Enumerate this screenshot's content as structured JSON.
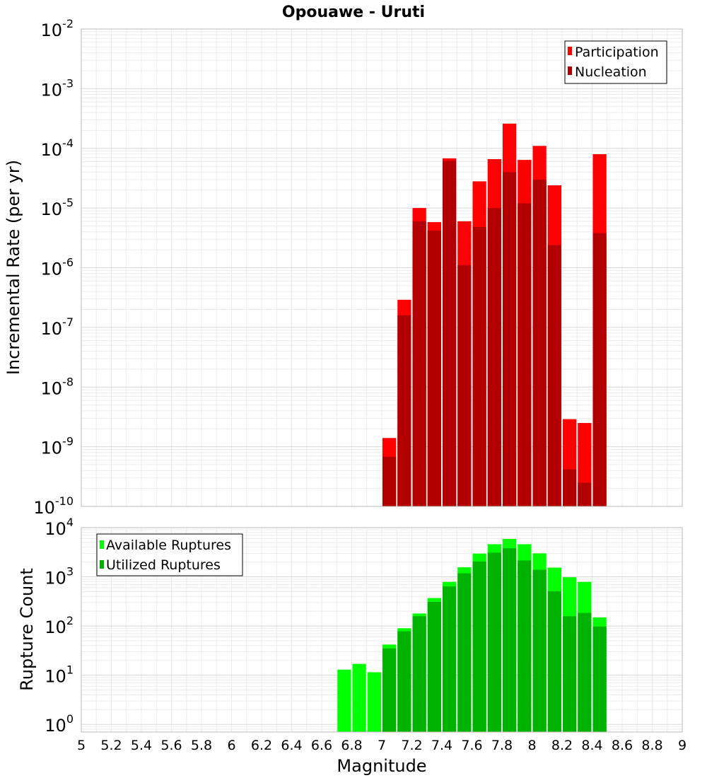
{
  "chart_data": [
    {
      "type": "bar",
      "title": "Opouawe - Uruti",
      "ylabel": "Incremental Rate (per yr)",
      "xlabel": "",
      "y_scale": "log",
      "ylim": [
        1e-10,
        0.01
      ],
      "xlim": [
        5,
        9
      ],
      "grid": true,
      "legend_position": "top-right",
      "bin_width": 0.1,
      "x": [
        7.05,
        7.15,
        7.25,
        7.35,
        7.45,
        7.55,
        7.65,
        7.75,
        7.85,
        7.95,
        8.05,
        8.15,
        8.25,
        8.35,
        8.45
      ],
      "series": [
        {
          "name": "Participation",
          "color": "#ff0000",
          "values": [
            1.4e-09,
            2.9e-07,
            1e-05,
            5.8e-06,
            6.8e-05,
            6e-06,
            2.8e-05,
            6.6e-05,
            0.00026,
            6.4e-05,
            0.00011,
            2.4e-05,
            2.9e-09,
            2.5e-09,
            8e-05
          ]
        },
        {
          "name": "Nucleation",
          "color": "#b20000",
          "values": [
            6.8e-10,
            1.6e-07,
            6e-06,
            4.2e-06,
            6.2e-05,
            1.1e-06,
            4.8e-06,
            1e-05,
            4e-05,
            1.2e-05,
            3e-05,
            2.4e-06,
            4.2e-10,
            2.5e-10,
            3.8e-06
          ]
        }
      ],
      "y_ticks": [
        {
          "base": "10",
          "exp": "-2"
        },
        {
          "base": "10",
          "exp": "-3"
        },
        {
          "base": "10",
          "exp": "-4"
        },
        {
          "base": "10",
          "exp": "-5"
        },
        {
          "base": "10",
          "exp": "-6"
        },
        {
          "base": "10",
          "exp": "-7"
        },
        {
          "base": "10",
          "exp": "-8"
        },
        {
          "base": "10",
          "exp": "-9"
        },
        {
          "base": "10",
          "exp": "-10"
        }
      ]
    },
    {
      "type": "bar",
      "ylabel": "Rupture Count",
      "xlabel": "Magnitude",
      "y_scale": "log",
      "ylim": [
        0.7,
        10000.0
      ],
      "xlim": [
        5,
        9
      ],
      "grid": true,
      "legend_position": "top-left",
      "bin_width": 0.1,
      "x": [
        6.75,
        6.85,
        6.95,
        7.05,
        7.15,
        7.25,
        7.35,
        7.45,
        7.55,
        7.65,
        7.75,
        7.85,
        7.95,
        8.05,
        8.15,
        8.25,
        8.35,
        8.45
      ],
      "series": [
        {
          "name": "Available Ruptures",
          "color": "#00ff00",
          "values": [
            13,
            17,
            11.5,
            42,
            90,
            180,
            370,
            790,
            1560,
            2970,
            4600,
            5900,
            4600,
            3000,
            1540,
            980,
            790,
            150
          ]
        },
        {
          "name": "Utilized Ruptures",
          "color": "#00b200",
          "values": [
            0,
            0,
            0,
            35,
            78,
            158,
            310,
            640,
            1180,
            2050,
            3100,
            3800,
            2150,
            1390,
            510,
            158,
            185,
            98
          ]
        }
      ],
      "y_ticks": [
        {
          "base": "10",
          "exp": "4"
        },
        {
          "base": "10",
          "exp": "3"
        },
        {
          "base": "10",
          "exp": "2"
        },
        {
          "base": "10",
          "exp": "1"
        },
        {
          "base": "10",
          "exp": "0"
        }
      ],
      "x_ticks": [
        "5",
        "5.2",
        "5.4",
        "5.6",
        "5.8",
        "6",
        "6.2",
        "6.4",
        "6.6",
        "6.8",
        "7",
        "7.2",
        "7.4",
        "7.6",
        "7.8",
        "8",
        "8.2",
        "8.4",
        "8.6",
        "8.8",
        "9"
      ]
    }
  ]
}
